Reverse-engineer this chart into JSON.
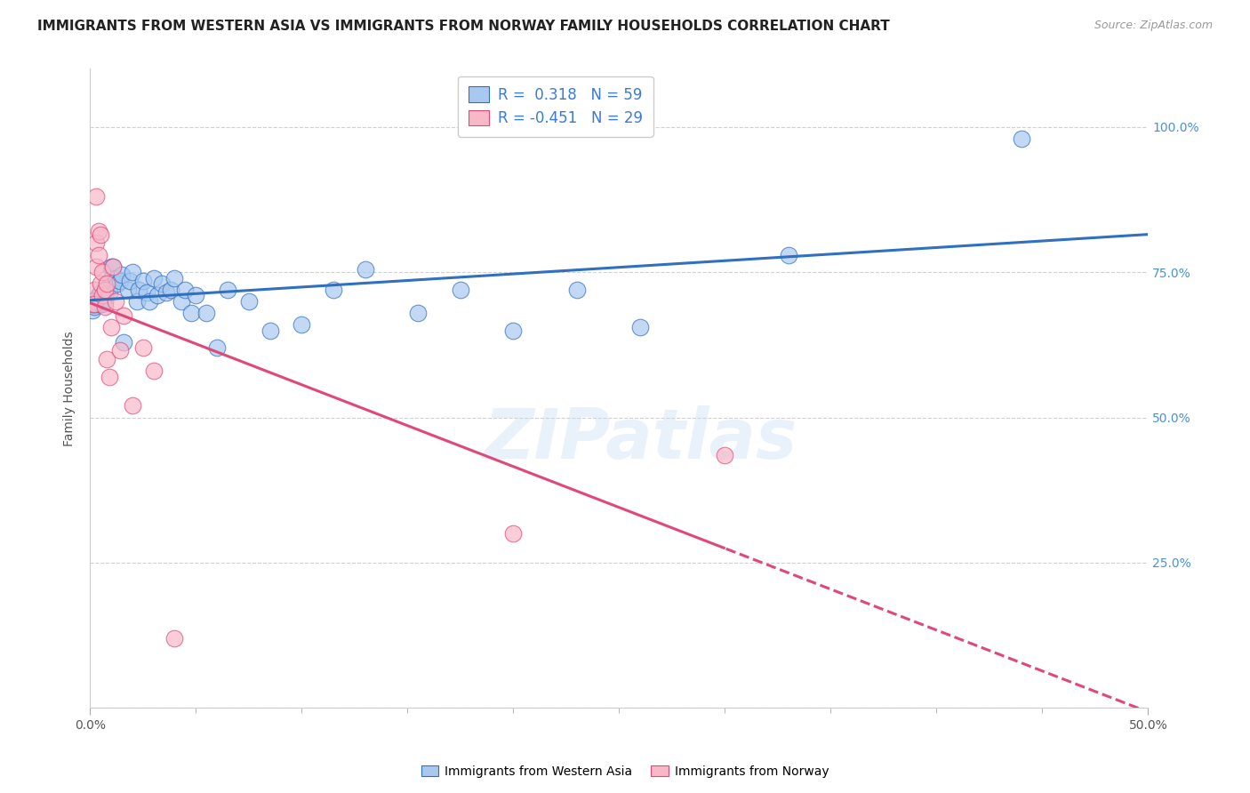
{
  "title": "IMMIGRANTS FROM WESTERN ASIA VS IMMIGRANTS FROM NORWAY FAMILY HOUSEHOLDS CORRELATION CHART",
  "source": "Source: ZipAtlas.com",
  "ylabel": "Family Households",
  "watermark": "ZIPatlas",
  "legend_blue_r": "R =  0.318",
  "legend_blue_n": "N = 59",
  "legend_pink_r": "R = -0.451",
  "legend_pink_n": "N = 29",
  "legend_blue_label": "Immigrants from Western Asia",
  "legend_pink_label": "Immigrants from Norway",
  "blue_scatter_x": [
    0.001,
    0.002,
    0.002,
    0.003,
    0.003,
    0.004,
    0.004,
    0.005,
    0.005,
    0.005,
    0.006,
    0.006,
    0.006,
    0.007,
    0.007,
    0.008,
    0.008,
    0.009,
    0.01,
    0.01,
    0.011,
    0.012,
    0.013,
    0.014,
    0.015,
    0.016,
    0.018,
    0.019,
    0.02,
    0.022,
    0.023,
    0.025,
    0.027,
    0.028,
    0.03,
    0.032,
    0.034,
    0.036,
    0.038,
    0.04,
    0.043,
    0.045,
    0.048,
    0.05,
    0.055,
    0.06,
    0.065,
    0.075,
    0.085,
    0.1,
    0.115,
    0.13,
    0.155,
    0.175,
    0.2,
    0.23,
    0.26,
    0.33,
    0.44
  ],
  "blue_scatter_y": [
    0.685,
    0.69,
    0.695,
    0.7,
    0.705,
    0.695,
    0.71,
    0.7,
    0.695,
    0.715,
    0.7,
    0.705,
    0.695,
    0.71,
    0.7,
    0.73,
    0.72,
    0.715,
    0.76,
    0.74,
    0.76,
    0.74,
    0.73,
    0.735,
    0.745,
    0.63,
    0.72,
    0.735,
    0.75,
    0.7,
    0.72,
    0.735,
    0.715,
    0.7,
    0.74,
    0.71,
    0.73,
    0.715,
    0.72,
    0.74,
    0.7,
    0.72,
    0.68,
    0.71,
    0.68,
    0.62,
    0.72,
    0.7,
    0.65,
    0.66,
    0.72,
    0.755,
    0.68,
    0.72,
    0.65,
    0.72,
    0.655,
    0.78,
    0.98
  ],
  "pink_scatter_x": [
    0.001,
    0.001,
    0.002,
    0.002,
    0.003,
    0.003,
    0.003,
    0.004,
    0.004,
    0.005,
    0.005,
    0.006,
    0.006,
    0.007,
    0.007,
    0.008,
    0.008,
    0.009,
    0.01,
    0.011,
    0.012,
    0.014,
    0.016,
    0.02,
    0.025,
    0.03,
    0.04,
    0.2,
    0.3
  ],
  "pink_scatter_y": [
    0.7,
    0.695,
    0.72,
    0.695,
    0.88,
    0.8,
    0.76,
    0.82,
    0.78,
    0.815,
    0.73,
    0.75,
    0.71,
    0.72,
    0.69,
    0.73,
    0.6,
    0.57,
    0.655,
    0.76,
    0.7,
    0.615,
    0.675,
    0.52,
    0.62,
    0.58,
    0.12,
    0.3,
    0.435
  ],
  "blue_color": "#a8c8f0",
  "pink_color": "#f8b8c8",
  "blue_line_color": "#3070c0",
  "pink_line_color": "#e04878",
  "background_color": "#ffffff",
  "grid_color": "#d0d0d0",
  "xlim": [
    0.0,
    0.5
  ],
  "ylim": [
    0.0,
    1.1
  ],
  "right_yticks": [
    0.0,
    0.25,
    0.5,
    0.75,
    1.0
  ],
  "right_yticklabels": [
    "",
    "25.0%",
    "50.0%",
    "75.0%",
    "100.0%"
  ],
  "title_fontsize": 11,
  "axis_fontsize": 10
}
